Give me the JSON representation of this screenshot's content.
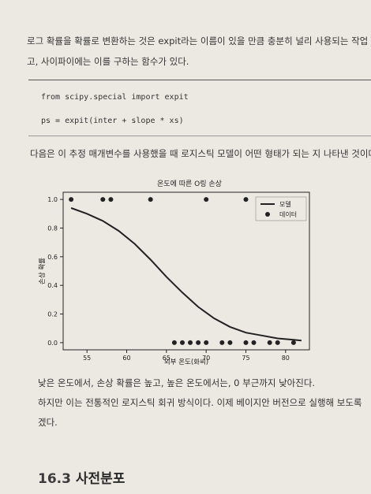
{
  "paragraphs": {
    "p1_line1": "로그 확률을 확률로 변환하는 것은 expit라는 이름이 있을 만큼 충분히 널리 사용되는 작업",
    "p1_line2": "고, 사이파이에는 이를 구하는 함수가 있다.",
    "p2": "다음은 이 추정 매개변수를 사용했을 때 로지스틱 모델이 어떤 형태가 되는 지 나타낸 것이다.",
    "p3": "낮은 온도에서, 손상 확률은 높고, 높은 온도에서는, 0 부근까지 낮아진다.",
    "p4": "하지만 이는 전통적인 로지스틱 회귀 방식이다. 이제 베이지안 버전으로 실행해 보도록",
    "p5": "겠다."
  },
  "code": {
    "line1": "from scipy.special import expit",
    "line2": "ps = expit(inter + slope * xs)"
  },
  "section": {
    "number": "16.3",
    "title": "사전분포"
  },
  "chart_data": {
    "type": "line",
    "title": "온도에 따른 O링 손상",
    "xlabel": "외부 온도(화씨)",
    "ylabel": "손상 확률",
    "xlim": [
      52,
      83
    ],
    "ylim": [
      -0.05,
      1.05
    ],
    "xticks": [
      55,
      60,
      65,
      70,
      75,
      80
    ],
    "yticks": [
      0.0,
      0.2,
      0.4,
      0.6,
      0.8,
      1.0
    ],
    "legend_position": "top-right",
    "grid": false,
    "series": [
      {
        "name": "모델",
        "kind": "line",
        "color": "#222222",
        "x": [
          53,
          55,
          57,
          59,
          61,
          63,
          65,
          67,
          69,
          71,
          73,
          75,
          77,
          79,
          81,
          82
        ],
        "y": [
          0.94,
          0.9,
          0.85,
          0.78,
          0.69,
          0.58,
          0.46,
          0.35,
          0.25,
          0.17,
          0.11,
          0.07,
          0.05,
          0.03,
          0.02,
          0.015
        ]
      },
      {
        "name": "데이터",
        "kind": "scatter",
        "color": "#222222",
        "x": [
          53,
          57,
          58,
          63,
          70,
          75,
          66,
          67,
          68,
          69,
          70,
          72,
          73,
          75,
          76,
          78,
          79,
          81
        ],
        "y": [
          1,
          1,
          1,
          1,
          1,
          1,
          0,
          0,
          0,
          0,
          0,
          0,
          0,
          0,
          0,
          0,
          0,
          0
        ]
      }
    ]
  }
}
